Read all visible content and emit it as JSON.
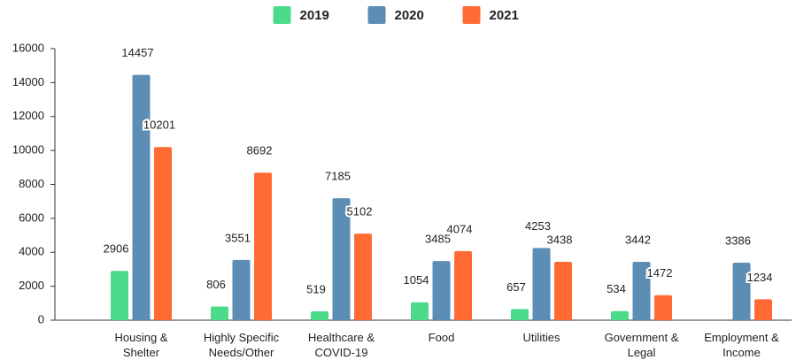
{
  "chart_data": {
    "type": "bar",
    "categories": [
      "Housing &\nShelter",
      "Highly Specific\nNeeds/Other",
      "Healthcare &\nCOVID-19",
      "Food",
      "Utilities",
      "Government &\nLegal",
      "Employment &\nIncome"
    ],
    "series": [
      {
        "name": "2019",
        "color": "#4cdb8a",
        "values": [
          2906,
          806,
          519,
          1054,
          657,
          534,
          null
        ]
      },
      {
        "name": "2020",
        "color": "#5b8db5",
        "values": [
          14457,
          3551,
          7185,
          3485,
          4253,
          3442,
          3386
        ]
      },
      {
        "name": "2021",
        "color": "#ff6b33",
        "values": [
          10201,
          8692,
          5102,
          4074,
          3438,
          1472,
          1234
        ]
      }
    ],
    "ylim": [
      0,
      16000
    ],
    "yticks": [
      0,
      2000,
      4000,
      6000,
      8000,
      10000,
      12000,
      14000,
      16000
    ],
    "grid": false,
    "legend": "top"
  }
}
